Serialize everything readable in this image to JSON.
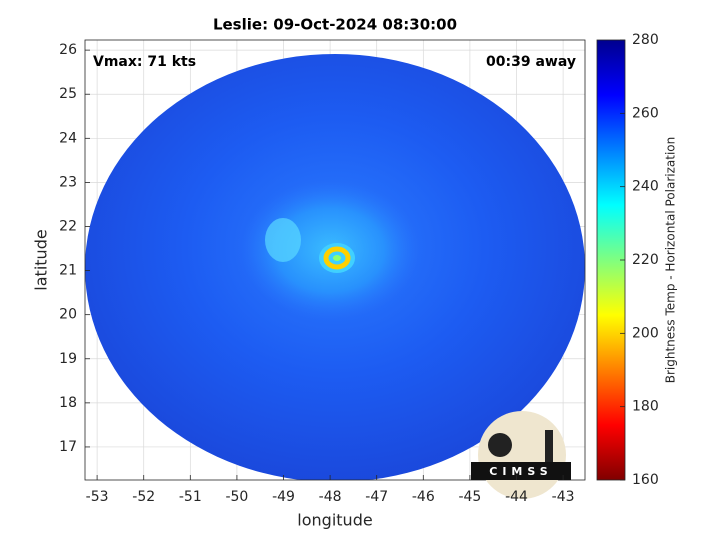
{
  "chart_data": {
    "type": "image",
    "title": "Leslie: 09-Oct-2024 08:30:00",
    "annotations": [
      "Vmax: 71 kts",
      "00:39 away"
    ],
    "xlabel": "longitude",
    "ylabel": "latitude",
    "xlim": [
      -53.26,
      -42.53
    ],
    "ylim": [
      16.25,
      26.23
    ],
    "xticks": [
      -53,
      -52,
      -51,
      -50,
      -49,
      -48,
      -47,
      -46,
      -45,
      -44,
      -43
    ],
    "yticks": [
      17,
      18,
      19,
      20,
      21,
      22,
      23,
      24,
      25,
      26
    ],
    "grid": true,
    "colorbar": {
      "label": "Brightness Temp - Horizontal Polarization",
      "lim": [
        160,
        280
      ],
      "ticks": [
        160,
        180,
        200,
        220,
        240,
        260,
        280
      ]
    },
    "logo": "CIMSS"
  }
}
